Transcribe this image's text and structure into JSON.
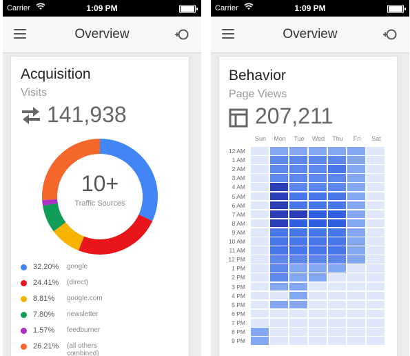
{
  "status_bar": {
    "carrier": "Carrier",
    "time": "1:09 PM"
  },
  "phones": [
    {
      "nav_title": "Overview"
    },
    {
      "nav_title": "Overview"
    }
  ],
  "acquisition": {
    "title": "Acquisition",
    "metric_label": "Visits",
    "metric_value": "141,938",
    "donut_center_value": "10+",
    "donut_center_label": "Traffic Sources",
    "sources": [
      {
        "pct": "32.20%",
        "name": "google",
        "value": 32.2,
        "color": "#4285f4"
      },
      {
        "pct": "24.41%",
        "name": "(direct)",
        "value": 24.41,
        "color": "#e8151b"
      },
      {
        "pct": "8.81%",
        "name": "google.com",
        "value": 8.81,
        "color": "#f4b400"
      },
      {
        "pct": "7.80%",
        "name": "newsletter",
        "value": 7.8,
        "color": "#0f9d58"
      },
      {
        "pct": "1.57%",
        "name": "feedburner",
        "value": 1.57,
        "color": "#ab30c4"
      },
      {
        "pct": "26.21%",
        "name": "(all others combined)",
        "value": 26.21,
        "color": "#f4662a"
      }
    ]
  },
  "behavior": {
    "title": "Behavior",
    "metric_label": "Page Views",
    "metric_value": "207,211",
    "days": [
      "Sun",
      "Mon",
      "Tue",
      "Wed",
      "Thu",
      "Fri",
      "Sat"
    ],
    "hours": [
      "12 AM",
      "1 AM",
      "2 AM",
      "3 AM",
      "4 AM",
      "5 AM",
      "6 AM",
      "7 AM",
      "8 AM",
      "9 AM",
      "10 AM",
      "11 AM",
      "12 PM",
      "1 PM",
      "2 PM",
      "3 PM",
      "4 PM",
      "5 PM",
      "6 PM",
      "7 PM",
      "8 PM",
      "9 PM"
    ],
    "heat_levels": [
      [
        1,
        3,
        3,
        3,
        3,
        3,
        1
      ],
      [
        1,
        4,
        4,
        4,
        4,
        3,
        1
      ],
      [
        1,
        4,
        4,
        4,
        5,
        3,
        1
      ],
      [
        1,
        4,
        4,
        4,
        4,
        3,
        1
      ],
      [
        1,
        7,
        4,
        4,
        4,
        3,
        1
      ],
      [
        1,
        7,
        5,
        5,
        5,
        3,
        1
      ],
      [
        1,
        7,
        5,
        5,
        5,
        3,
        1
      ],
      [
        1,
        7,
        7,
        6,
        6,
        3,
        1
      ],
      [
        1,
        7,
        6,
        6,
        6,
        3,
        1
      ],
      [
        1,
        5,
        5,
        5,
        5,
        3,
        1
      ],
      [
        1,
        5,
        5,
        5,
        5,
        3,
        1
      ],
      [
        1,
        5,
        5,
        5,
        5,
        3,
        1
      ],
      [
        1,
        4,
        4,
        4,
        4,
        3,
        1
      ],
      [
        1,
        4,
        3,
        3,
        3,
        1,
        1
      ],
      [
        1,
        4,
        3,
        3,
        1,
        1,
        1
      ],
      [
        1,
        3,
        3,
        1,
        1,
        1,
        1
      ],
      [
        1,
        1,
        3,
        1,
        1,
        1,
        1
      ],
      [
        1,
        3,
        3,
        1,
        1,
        1,
        1
      ],
      [
        1,
        1,
        1,
        1,
        1,
        1,
        1
      ],
      [
        1,
        1,
        1,
        1,
        1,
        1,
        1
      ],
      [
        3,
        1,
        1,
        1,
        1,
        1,
        1
      ],
      [
        3,
        1,
        1,
        1,
        1,
        1,
        1
      ]
    ],
    "heat_palette": [
      "#ffffff",
      "#dfe8fb",
      "#b5cbf6",
      "#84a7f1",
      "#5d87ec",
      "#4877e9",
      "#3060e0",
      "#2a3fb7"
    ]
  }
}
